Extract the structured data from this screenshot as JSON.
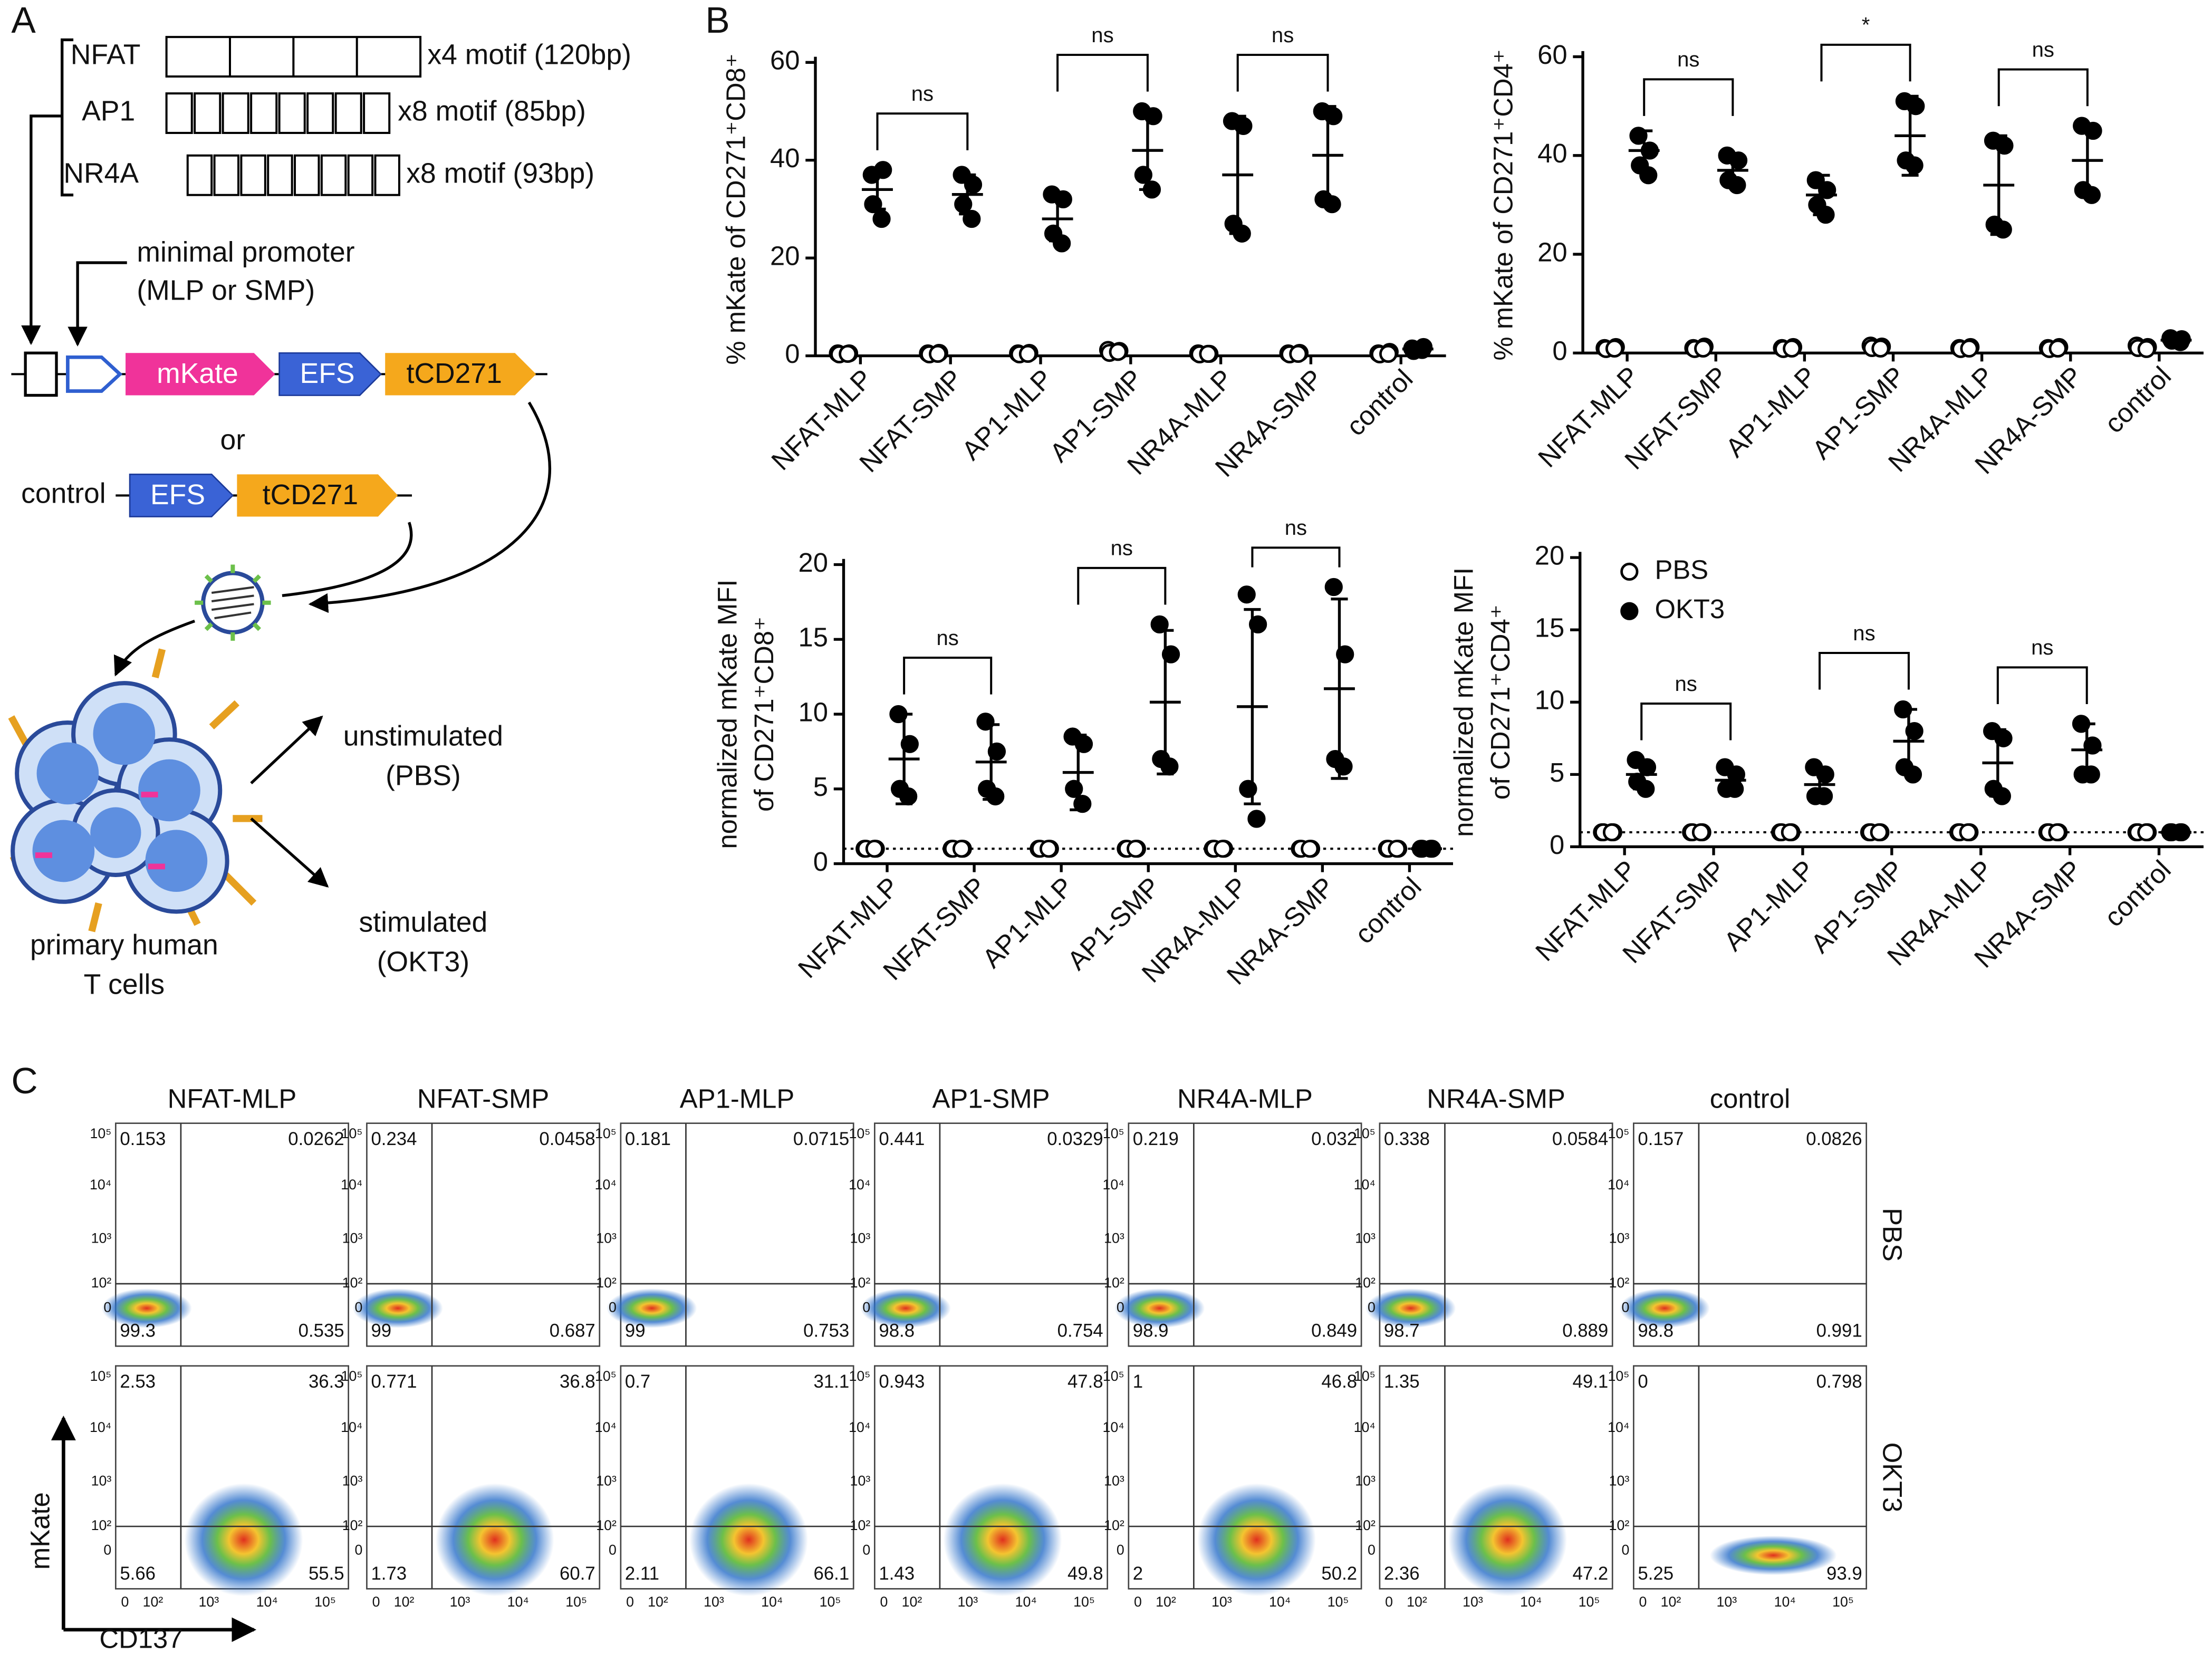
{
  "panel_a": {
    "label": "A",
    "motifs": [
      {
        "name": "NFAT",
        "text": "x4 motif (120bp)"
      },
      {
        "name": "AP1",
        "text": "x8 motif (85bp)"
      },
      {
        "name": "NR4A",
        "text": "x8 motif (93bp)"
      }
    ],
    "promoter": [
      "minimal promoter",
      "(MLP or SMP)"
    ],
    "construct": [
      "mKate",
      "EFS",
      "tCD271"
    ],
    "or": "or",
    "control": [
      "control",
      "EFS",
      "tCD271"
    ],
    "outcomes": [
      [
        "unstimulated",
        "(PBS)"
      ],
      [
        "stimulated",
        "(OKT3)"
      ]
    ],
    "cells": [
      "primary human",
      "T cells"
    ]
  },
  "panel_b": {
    "label": "B"
  },
  "chart_data": [
    {
      "type": "dot",
      "ylabel": [
        "% mKate of CD271⁺CD8⁺"
      ],
      "categories": [
        "NFAT-MLP",
        "NFAT-SMP",
        "AP1-MLP",
        "AP1-SMP",
        "NR4A-MLP",
        "NR4A-SMP",
        "control"
      ],
      "series": [
        {
          "filled": false,
          "color": "#000000",
          "values": [
            [
              0.5,
              0.5,
              0.3,
              0.4
            ],
            [
              0.5,
              0.6,
              0.3,
              0.4
            ],
            [
              0.5,
              0.6,
              0.3,
              0.4
            ],
            [
              1.2,
              1.0,
              0.6,
              0.8
            ],
            [
              0.5,
              0.4,
              0.3,
              0.4
            ],
            [
              0.5,
              0.6,
              0.3,
              0.4
            ],
            [
              0.5,
              0.8,
              0.3,
              0.4
            ]
          ]
        },
        {
          "filled": true,
          "color": "#000000",
          "values": [
            [
              37,
              38,
              31,
              28
            ],
            [
              37,
              35,
              31,
              28
            ],
            [
              33,
              32,
              25,
              23
            ],
            [
              50,
              49,
              37,
              34
            ],
            [
              48,
              47,
              27,
              25
            ],
            [
              50,
              49,
              32,
              31
            ],
            [
              1.5,
              1.8,
              1.0,
              1.2
            ]
          ],
          "means": [
            34,
            33,
            28,
            42,
            37,
            41,
            1.4
          ],
          "sds": [
            4,
            4,
            4.5,
            8,
            12,
            10,
            0.3
          ]
        }
      ],
      "ylim": [
        0,
        60
      ],
      "yticks": [
        0,
        20,
        40,
        60
      ],
      "annotations": [
        "ns",
        "ns",
        "ns"
      ]
    },
    {
      "type": "dot",
      "ylabel": [
        "% mKate of CD271⁺CD4⁺"
      ],
      "categories": [
        "NFAT-MLP",
        "NFAT-SMP",
        "AP1-MLP",
        "AP1-SMP",
        "NR4A-MLP",
        "NR4A-SMP",
        "control"
      ],
      "series": [
        {
          "filled": false,
          "color": "#000000",
          "values": [
            [
              1,
              1.2,
              0.8,
              0.9
            ],
            [
              1,
              1.3,
              0.8,
              0.9
            ],
            [
              1,
              1.2,
              0.8,
              0.9
            ],
            [
              1.5,
              1.3,
              1,
              0.9
            ],
            [
              1,
              1.2,
              0.8,
              0.9
            ],
            [
              1,
              1.2,
              0.8,
              0.9
            ],
            [
              1.5,
              1.2,
              1,
              0.8
            ]
          ]
        },
        {
          "filled": true,
          "color": "#000000",
          "values": [
            [
              44,
              41,
              38,
              36
            ],
            [
              40,
              39,
              35,
              34
            ],
            [
              35,
              33,
              30,
              28
            ],
            [
              51,
              50,
              39,
              38
            ],
            [
              43,
              42,
              26,
              25
            ],
            [
              46,
              45,
              33,
              32
            ],
            [
              3,
              2.8,
              2.5,
              2.2
            ]
          ],
          "means": [
            41,
            37,
            32,
            44,
            34,
            39,
            2.6
          ],
          "sds": [
            4,
            3,
            4,
            8,
            10,
            7,
            0.4
          ]
        }
      ],
      "ylim": [
        0,
        60
      ],
      "yticks": [
        0,
        20,
        40,
        60
      ],
      "annotations": [
        "ns",
        "*",
        "ns"
      ]
    },
    {
      "type": "dot",
      "ylabel": [
        "normalized mKate MFI",
        "of CD271⁺CD8⁺"
      ],
      "categories": [
        "NFAT-MLP",
        "NFAT-SMP",
        "AP1-MLP",
        "AP1-SMP",
        "NR4A-MLP",
        "NR4A-SMP",
        "control"
      ],
      "series": [
        {
          "filled": false,
          "color": "#000000",
          "values": [
            [
              1,
              1,
              1,
              1
            ],
            [
              1,
              1,
              1,
              1
            ],
            [
              1,
              1,
              1,
              1
            ],
            [
              1,
              1,
              1,
              1
            ],
            [
              1,
              1,
              1,
              1
            ],
            [
              1,
              1,
              1,
              1
            ],
            [
              1,
              1,
              1,
              1
            ]
          ]
        },
        {
          "filled": true,
          "color": "#000000",
          "values": [
            [
              10,
              8,
              5,
              4.5
            ],
            [
              9.5,
              7.5,
              5,
              4.5
            ],
            [
              8.5,
              8,
              5,
              4
            ],
            [
              16,
              14,
              7,
              6.5
            ],
            [
              18,
              16,
              5,
              3
            ],
            [
              18.5,
              14,
              7,
              6.5
            ],
            [
              1,
              1,
              1,
              1
            ]
          ],
          "means": [
            7,
            6.8,
            6.1,
            10.8,
            10.5,
            11.7,
            1
          ],
          "sds": [
            3,
            2.5,
            2.5,
            4.8,
            6.5,
            6,
            0.1
          ]
        }
      ],
      "ylim": [
        0,
        20
      ],
      "yticks": [
        0,
        5,
        10,
        15,
        20
      ],
      "reference_line": 1,
      "annotations": [
        "ns",
        "ns",
        "ns"
      ]
    },
    {
      "type": "dot",
      "ylabel": [
        "normalized mKate MFI",
        "of CD271⁺CD4⁺"
      ],
      "categories": [
        "NFAT-MLP",
        "NFAT-SMP",
        "AP1-MLP",
        "AP1-SMP",
        "NR4A-MLP",
        "NR4A-SMP",
        "control"
      ],
      "series": [
        {
          "name": "PBS",
          "filled": false,
          "color": "#000000",
          "values": [
            [
              1,
              1,
              1,
              1
            ],
            [
              1,
              1,
              1,
              1
            ],
            [
              1,
              1,
              1,
              1
            ],
            [
              1,
              1,
              1,
              1
            ],
            [
              1,
              1,
              1,
              1
            ],
            [
              1,
              1,
              1,
              1
            ],
            [
              1,
              1,
              1,
              1
            ]
          ]
        },
        {
          "name": "OKT3",
          "filled": true,
          "color": "#000000",
          "values": [
            [
              6,
              5.5,
              4.5,
              4
            ],
            [
              5.5,
              5,
              4,
              4
            ],
            [
              5.5,
              5,
              3.5,
              3.5
            ],
            [
              9.5,
              8,
              5.5,
              5
            ],
            [
              8,
              7.5,
              4,
              3.5
            ],
            [
              8.5,
              7,
              5,
              5
            ],
            [
              1,
              1,
              1,
              1
            ]
          ],
          "means": [
            5,
            4.6,
            4.3,
            7.3,
            5.8,
            6.7,
            1
          ],
          "sds": [
            1,
            0.9,
            1,
            2.2,
            2.3,
            1.8,
            0.1
          ]
        }
      ],
      "ylim": [
        0,
        20
      ],
      "yticks": [
        0,
        5,
        10,
        15,
        20
      ],
      "reference_line": 1,
      "legend": "upper left",
      "annotations": [
        "ns",
        "ns",
        "ns"
      ]
    }
  ],
  "panel_c": {
    "label": "C",
    "columns": [
      "NFAT-MLP",
      "NFAT-SMP",
      "AP1-MLP",
      "AP1-SMP",
      "NR4A-MLP",
      "NR4A-SMP",
      "control"
    ],
    "rows": [
      "PBS",
      "OKT3"
    ],
    "quadrants": [
      [
        [
          0.153,
          0.0262,
          99.3,
          0.535
        ],
        [
          0.234,
          0.0458,
          99,
          0.687
        ],
        [
          0.181,
          0.0715,
          99,
          0.753
        ],
        [
          0.441,
          0.0329,
          98.8,
          0.754
        ],
        [
          0.219,
          0.032,
          98.9,
          0.849
        ],
        [
          0.338,
          0.0584,
          98.7,
          0.889
        ],
        [
          0.157,
          0.0826,
          98.8,
          0.991
        ]
      ],
      [
        [
          2.53,
          36.3,
          5.66,
          55.5
        ],
        [
          0.771,
          36.8,
          1.73,
          60.7
        ],
        [
          0.7,
          31.1,
          2.11,
          66.1
        ],
        [
          0.943,
          47.8,
          1.43,
          49.8
        ],
        [
          1,
          46.8,
          2,
          50.2
        ],
        [
          1.35,
          49.1,
          2.36,
          47.2
        ],
        [
          0,
          0.798,
          5.25,
          93.9
        ]
      ]
    ],
    "y_ticks": [
      "10⁵",
      "10⁴",
      "10³",
      "10²",
      "0"
    ],
    "x_ticks": [
      "0",
      "10²",
      "10³",
      "10⁴",
      "10⁵"
    ],
    "y_axis": "mKate",
    "x_axis": "CD137"
  }
}
